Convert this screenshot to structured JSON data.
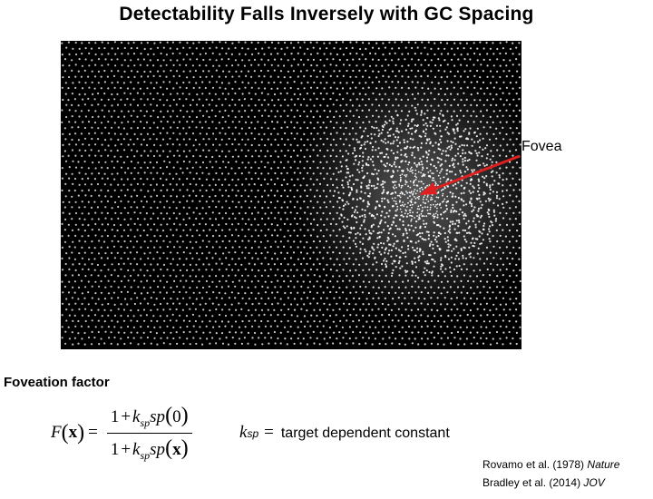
{
  "slide": {
    "title": "Detectability Falls Inversely with GC Spacing"
  },
  "figure": {
    "image": "retinal ganglion cell mosaic",
    "annotation_label": "Fovea",
    "annotation_color": "#e02020",
    "background_color": "#000000",
    "dot_color": "#ffffff"
  },
  "section": {
    "label": "Foveation factor"
  },
  "formula": {
    "lhs_func": "F",
    "lhs_var": "x",
    "equals": "=",
    "one": "1",
    "plus": "+",
    "k": "k",
    "k_sub": "sp",
    "sp": "sp",
    "zero": "0",
    "var": "x"
  },
  "definition": {
    "symbol": "k",
    "symbol_sub": "sp",
    "equals": "=",
    "text": "target dependent constant"
  },
  "references": [
    {
      "text": "Rovamo et al. (1978)",
      "journal": "Nature"
    },
    {
      "text": "Bradley et al. (2014)",
      "journal": "JOV"
    }
  ]
}
